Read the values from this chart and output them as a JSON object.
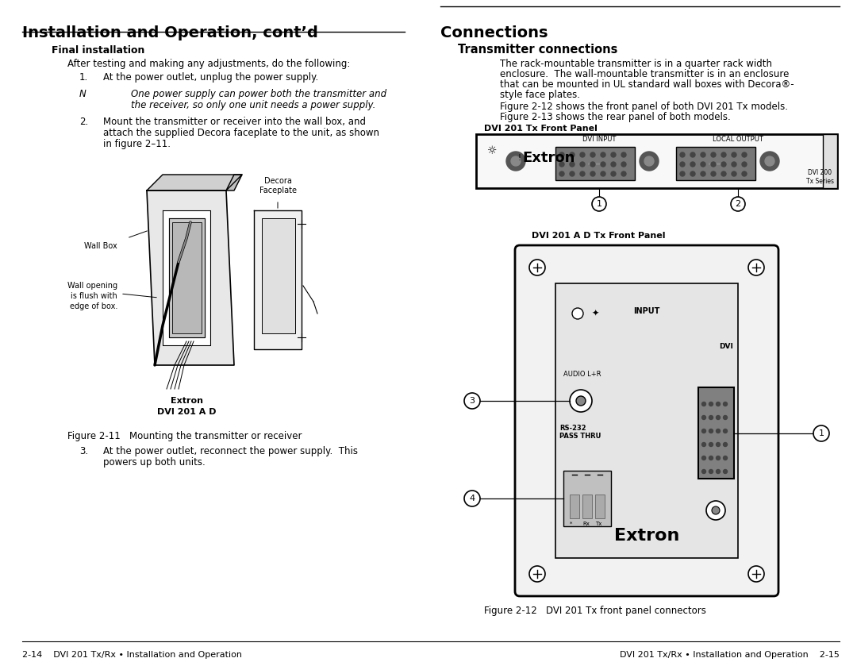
{
  "bg_color": "#ffffff",
  "page_width": 10.8,
  "page_height": 8.34,
  "left_title": "Installation and Operation, cont’d",
  "left_section_heading": "Final installation",
  "left_para0": "After testing and making any adjustments, do the following:",
  "left_item1_num": "1.",
  "left_item1_text": "At the power outlet, unplug the power supply.",
  "left_note_label": "N",
  "left_note_line1": "One power supply can power both the transmitter and",
  "left_note_line2": "the receiver, so only one unit needs a power supply.",
  "left_item2_num": "2.",
  "left_item2_line1": "Mount the transmitter or receiver into the wall box, and",
  "left_item2_line2": "attach the supplied Decora faceplate to the unit, as shown",
  "left_item2_line3": "in figure 2–11.",
  "left_fig_caption": "Figure 2-11   Mounting the transmitter or receiver",
  "left_item3_num": "3.",
  "left_item3_line1": "At the power outlet, reconnect the power supply.  This",
  "left_item3_line2": "powers up both units.",
  "right_title": "Connections",
  "right_sub": "Transmitter connections",
  "right_para1_l1": "The rack-mountable transmitter is in a quarter rack width",
  "right_para1_l2": "enclosure.  The wall-mountable transmitter is in an enclosure",
  "right_para1_l3": "that can be mounted in UL standard wall boxes with Decora®-",
  "right_para1_l4": "style face plates.",
  "right_para2_l1": "Figure 2-12 shows the front panel of both DVI 201 Tx models.",
  "right_para2_l2": "Figure 2-13 shows the rear panel of both models.",
  "right_diag1_label": "DVI 201 Tx Front Panel",
  "right_diag2_label": "DVI 201 A D Tx Front Panel",
  "right_fig_caption": "Figure 2-12   DVI 201 Tx front panel connectors",
  "footer_left": "2-14    DVI 201 Tx/Rx • Installation and Operation",
  "footer_right": "DVI 201 Tx/Rx • Installation and Operation    2-15"
}
